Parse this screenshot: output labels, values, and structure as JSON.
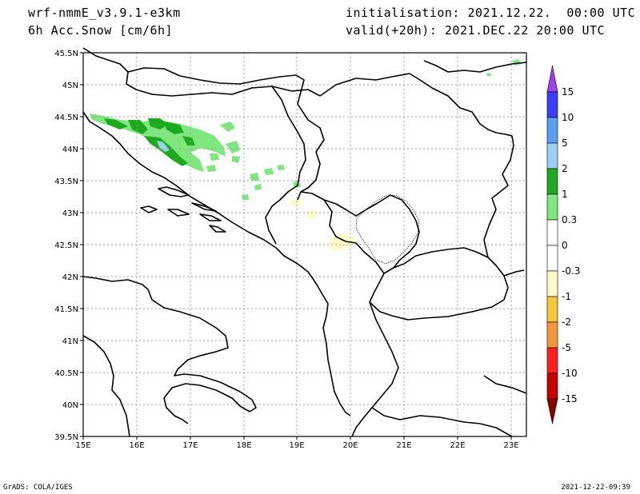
{
  "header": {
    "model": "wrf-nmmE_v3.9.1-e3km",
    "field": "6h Acc.Snow [cm/6h]",
    "init": "initialisation: 2021.12.22.  00:00 UTC",
    "valid": "valid(+20h): 2021.DEC.22 20:00 UTC"
  },
  "footer": {
    "left": "GrADS: COLA/IGES",
    "right": "2021-12-22-09:39"
  },
  "map": {
    "lat_ticks": [
      "45.5N",
      "45N",
      "44.5N",
      "44N",
      "43.5N",
      "43N",
      "42.5N",
      "42N",
      "41.5N",
      "41N",
      "40.5N",
      "40N",
      "39.5N"
    ],
    "lon_ticks": [
      "15E",
      "16E",
      "17E",
      "18E",
      "19E",
      "20E",
      "21E",
      "22E",
      "23E"
    ],
    "lat_range": [
      39.5,
      45.5
    ],
    "lon_range": [
      15,
      23.3
    ],
    "grid": true,
    "snow_colors": {
      "light_green": "#7ee87e",
      "green": "#1eaa1e",
      "light_blue": "#9bd0f5",
      "pale_yellow": "#fffbc8"
    }
  },
  "colorbar": {
    "labels": [
      "15",
      "10",
      "5",
      "2",
      "1",
      "0.3",
      "0",
      "-0.3",
      "-1",
      "-2",
      "-5",
      "-10",
      "-15"
    ],
    "colors": [
      "#3c3cff",
      "#5aa0f0",
      "#9bd0f5",
      "#1eaa1e",
      "#7ee87e",
      "#ffffff",
      "#ffffff",
      "#fffbc8",
      "#f5c83c",
      "#f5963c",
      "#ff1e1e",
      "#c80000"
    ],
    "top_arrow_color": "#a040f0",
    "bottom_arrow_color": "#8c0000"
  }
}
